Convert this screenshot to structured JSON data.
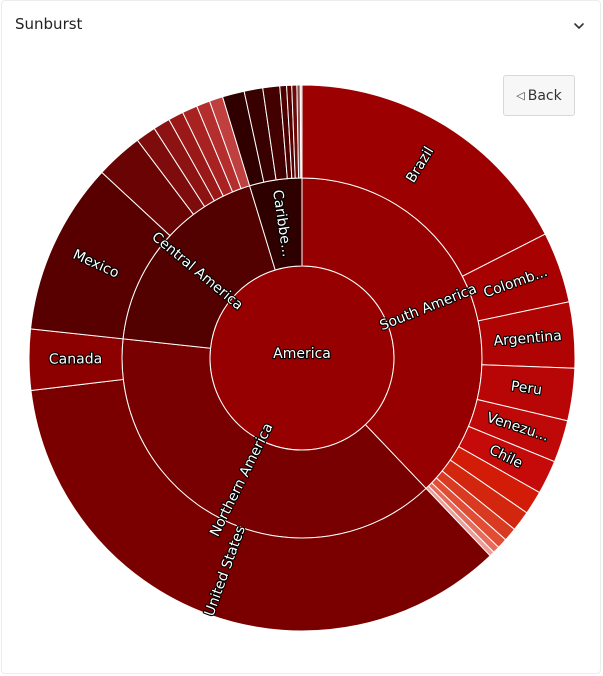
{
  "panel": {
    "title": "Sunburst",
    "back_label": "Back"
  },
  "icons": {
    "collapse": "chevron-down-icon",
    "back": "triangle-left-icon"
  },
  "chart_data": {
    "type": "sunburst",
    "unit": "share of full circle",
    "root": {
      "name": "America",
      "color": "#970000",
      "children": [
        {
          "name": "South America",
          "color": "#970000",
          "value": 0.379,
          "children": [
            {
              "name": "Brazil",
              "value": 0.175,
              "color": "#9d0000"
            },
            {
              "name": "Colomb...",
              "value": 0.042,
              "color": "#a80101"
            },
            {
              "name": "Argentina",
              "value": 0.039,
              "color": "#b00303"
            },
            {
              "name": "Peru",
              "value": 0.031,
              "color": "#b80606"
            },
            {
              "name": "Venezu...",
              "value": 0.025,
              "color": "#bf0808"
            },
            {
              "name": "Chile",
              "value": 0.02,
              "color": "#c60a0a"
            },
            {
              "name": "",
              "value": 0.014,
              "color": "#d21c08"
            },
            {
              "name": "",
              "value": 0.012,
              "color": "#d3260f"
            },
            {
              "name": "",
              "value": 0.008,
              "color": "#d93a22"
            },
            {
              "name": "",
              "value": 0.006,
              "color": "#e04c34"
            },
            {
              "name": "",
              "value": 0.004,
              "color": "#e56c5c"
            },
            {
              "name": "",
              "value": 0.003,
              "color": "#ee9e98"
            }
          ]
        },
        {
          "name": "Northern America",
          "color": "#780000",
          "value": 0.388,
          "children": [
            {
              "name": "United States",
              "value": 0.352,
              "color": "#7a0000"
            },
            {
              "name": "Canada",
              "value": 0.036,
              "color": "#8c0000"
            }
          ]
        },
        {
          "name": "Central America",
          "color": "#520000",
          "value": 0.186,
          "children": [
            {
              "name": "Mexico",
              "value": 0.102,
              "color": "#580000"
            },
            {
              "name": "",
              "value": 0.028,
              "color": "#6a0404"
            },
            {
              "name": "",
              "value": 0.012,
              "color": "#7e0c0c"
            },
            {
              "name": "",
              "value": 0.01,
              "color": "#8d1212"
            },
            {
              "name": "",
              "value": 0.009,
              "color": "#9b1818"
            },
            {
              "name": "",
              "value": 0.009,
              "color": "#a82222"
            },
            {
              "name": "",
              "value": 0.008,
              "color": "#b42e2e"
            },
            {
              "name": "",
              "value": 0.008,
              "color": "#c04040"
            }
          ]
        },
        {
          "name": "Caribbe...",
          "color": "#2e0000",
          "value": 0.047,
          "children": [
            {
              "name": "",
              "value": 0.013,
              "color": "#300000"
            },
            {
              "name": "",
              "value": 0.011,
              "color": "#380000"
            },
            {
              "name": "",
              "value": 0.01,
              "color": "#420000"
            },
            {
              "name": "",
              "value": 0.004,
              "color": "#4c0000"
            },
            {
              "name": "",
              "value": 0.003,
              "color": "#560000"
            },
            {
              "name": "",
              "value": 0.003,
              "color": "#6a0a0a"
            },
            {
              "name": "",
              "value": 0.002,
              "color": "#8a5050"
            },
            {
              "name": "",
              "value": 0.001,
              "color": "#c8c8c8"
            }
          ]
        }
      ]
    }
  }
}
